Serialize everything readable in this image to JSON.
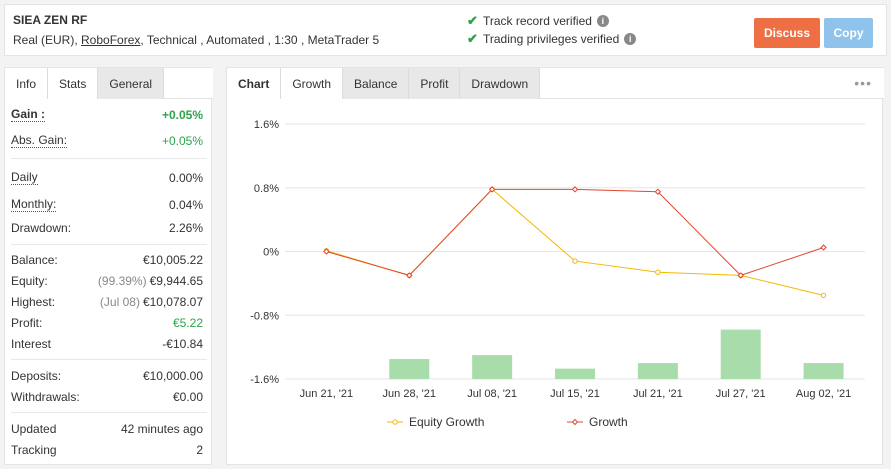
{
  "system": {
    "name": "SIEA ZEN RF",
    "account_type": "Real (EUR)",
    "broker": "RoboForex",
    "details": ", Technical , Automated , 1:30 , MetaTrader 5"
  },
  "verification": [
    {
      "text": "Track record verified"
    },
    {
      "text": "Trading privileges verified"
    }
  ],
  "buttons": {
    "discuss": "Discuss",
    "copy": "Copy"
  },
  "left_tabs": [
    "Info",
    "Stats",
    "General"
  ],
  "stats": {
    "gain": {
      "label": "Gain :",
      "value": "+0.05%"
    },
    "abs_gain": {
      "label": "Abs. Gain:",
      "value": "+0.05%"
    },
    "daily": {
      "label": "Daily",
      "value": "0.00%"
    },
    "monthly": {
      "label": "Monthly:",
      "value": "0.04%"
    },
    "drawdown": {
      "label": "Drawdown:",
      "value": "2.26%"
    },
    "balance": {
      "label": "Balance:",
      "value": "€10,005.22"
    },
    "equity": {
      "label": "Equity:",
      "prefix": "(99.39%)",
      "value": "€9,944.65"
    },
    "highest": {
      "label": "Highest:",
      "prefix": "(Jul 08)",
      "value": "€10,078.07"
    },
    "profit": {
      "label": "Profit:",
      "value": "€5.22"
    },
    "interest": {
      "label": "Interest",
      "value": "-€10.84"
    },
    "deposits": {
      "label": "Deposits:",
      "value": "€10,000.00"
    },
    "withdrawals": {
      "label": "Withdrawals:",
      "value": "€0.00"
    },
    "updated": {
      "label": "Updated",
      "value": "42 minutes ago"
    },
    "tracking": {
      "label": "Tracking",
      "value": "2"
    }
  },
  "right_tabs": [
    "Chart",
    "Growth",
    "Balance",
    "Profit",
    "Drawdown"
  ],
  "menu_icon": "more-dots-icon",
  "colors": {
    "discuss": "#ef6f45",
    "copy": "#8fc3ec",
    "positive": "#2aa54a",
    "equity_growth": "#f5b800",
    "growth": "#e2472f",
    "bars": "#a8dcaa"
  },
  "chart_data": {
    "type": "line",
    "categories": [
      "Jun 21, '21",
      "Jun 28, '21",
      "Jul 08, '21",
      "Jul 15, '21",
      "Jul 21, '21",
      "Jul 27, '21",
      "Aug 02, '21"
    ],
    "yticks": [
      "1.6%",
      "0.8%",
      "0%",
      "-0.8%",
      "-1.6%"
    ],
    "ylim": [
      -1.6,
      1.6
    ],
    "series": [
      {
        "name": "Equity Growth",
        "values": [
          0.01,
          -0.3,
          0.78,
          -0.12,
          -0.26,
          -0.3,
          -0.55
        ]
      },
      {
        "name": "Growth",
        "values": [
          0.0,
          -0.3,
          0.78,
          0.78,
          0.75,
          -0.3,
          0.05
        ]
      }
    ],
    "bars": [
      null,
      0.25,
      0.3,
      0.13,
      0.2,
      0.62,
      0.2
    ],
    "grid": true,
    "legend": "bottom"
  }
}
